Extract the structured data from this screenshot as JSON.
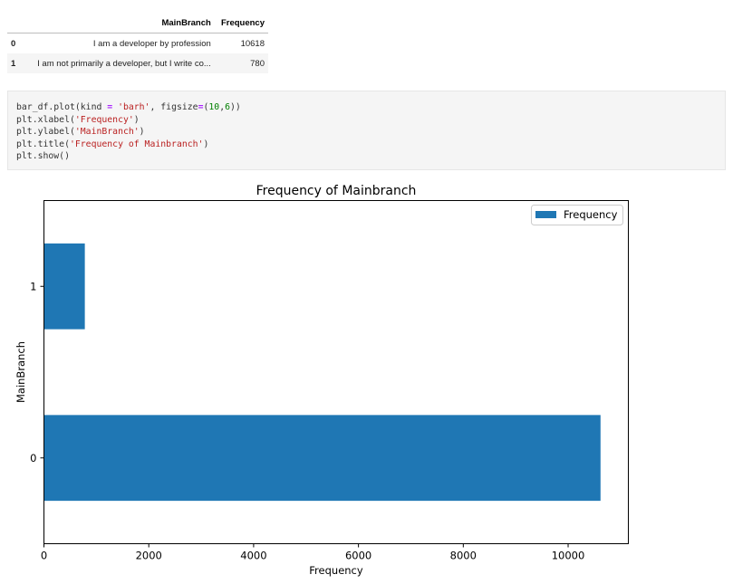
{
  "dataframe": {
    "columns": [
      "MainBranch",
      "Frequency"
    ],
    "rows": [
      {
        "index": "0",
        "branch": "I am a developer by profession",
        "frequency": "10618"
      },
      {
        "index": "1",
        "branch": "I am not primarily a developer, but I write co...",
        "frequency": "780"
      }
    ]
  },
  "code": {
    "line1": {
      "a": "bar_df.plot(kind ",
      "op1": "=",
      "b": " ",
      "s1": "'barh'",
      "c": ", figsize",
      "op2": "=",
      "d": "(",
      "n1": "10",
      "e": ",",
      "n2": "6",
      "f": "))"
    },
    "line2": {
      "a": "plt.xlabel(",
      "s": "'Frequency'",
      "b": ")"
    },
    "line3": {
      "a": "plt.ylabel(",
      "s": "'MainBranch'",
      "b": ")"
    },
    "line4": {
      "a": "plt.title(",
      "s": "'Frequency of Mainbranch'",
      "b": ")"
    },
    "line5": "plt.show()"
  },
  "chart_data": {
    "type": "bar",
    "orientation": "horizontal",
    "title": "Frequency of Mainbranch",
    "xlabel": "Frequency",
    "ylabel": "MainBranch",
    "categories": [
      "0",
      "1"
    ],
    "series": [
      {
        "name": "Frequency",
        "values": [
          10618,
          780
        ],
        "color": "#1f77b4"
      }
    ],
    "xlim": [
      0,
      11149
    ],
    "xticks": [
      0,
      2000,
      4000,
      6000,
      8000,
      10000
    ],
    "legend_position": "upper right",
    "grid": false
  }
}
